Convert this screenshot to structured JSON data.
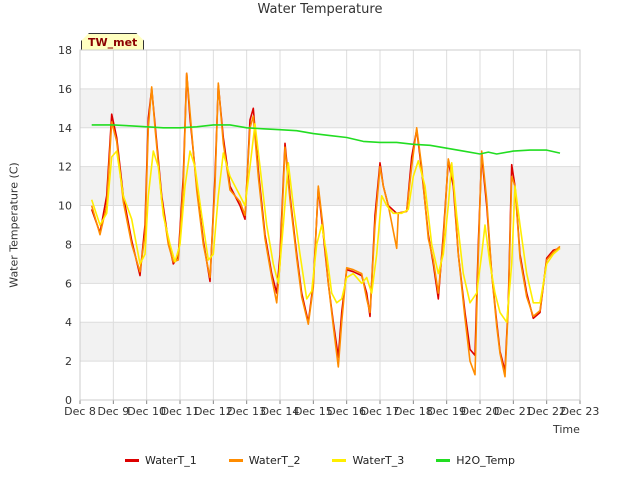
{
  "chart_data": {
    "type": "line",
    "title": "Water Temperature",
    "xlabel": "Time",
    "ylabel": "Water Temperature (C)",
    "ylim": [
      0,
      18
    ],
    "xlim": [
      8,
      23
    ],
    "yticks": [
      0,
      2,
      4,
      6,
      8,
      10,
      12,
      14,
      16,
      18
    ],
    "xticks": [
      {
        "value": 8,
        "label": "Dec 8"
      },
      {
        "value": 9,
        "label": "Dec 9"
      },
      {
        "value": 10,
        "label": "Dec 10"
      },
      {
        "value": 11,
        "label": "Dec 11"
      },
      {
        "value": 12,
        "label": "Dec 12"
      },
      {
        "value": 13,
        "label": "Dec 13"
      },
      {
        "value": 14,
        "label": "Dec 14"
      },
      {
        "value": 15,
        "label": "Dec 15"
      },
      {
        "value": 16,
        "label": "Dec 16"
      },
      {
        "value": 17,
        "label": "Dec 17"
      },
      {
        "value": 18,
        "label": "Dec 18"
      },
      {
        "value": 19,
        "label": "Dec 19"
      },
      {
        "value": 20,
        "label": "Dec 20"
      },
      {
        "value": 21,
        "label": "Dec 21"
      },
      {
        "value": 22,
        "label": "Dec 22"
      },
      {
        "value": 23,
        "label": "Dec 23"
      }
    ],
    "grid": true,
    "legend_position": "bottom",
    "annotation": "TW_met",
    "series": [
      {
        "name": "WaterT_1",
        "color": "#dd0000",
        "points": [
          [
            8.35,
            9.8
          ],
          [
            8.6,
            8.6
          ],
          [
            8.8,
            10.5
          ],
          [
            8.95,
            14.7
          ],
          [
            9.1,
            13.5
          ],
          [
            9.3,
            10.5
          ],
          [
            9.55,
            8.2
          ],
          [
            9.8,
            6.4
          ],
          [
            9.95,
            9.0
          ],
          [
            10.05,
            14.5
          ],
          [
            10.15,
            16.0
          ],
          [
            10.25,
            14.2
          ],
          [
            10.45,
            10.5
          ],
          [
            10.65,
            8.2
          ],
          [
            10.8,
            7.0
          ],
          [
            10.95,
            7.4
          ],
          [
            11.1,
            11.5
          ],
          [
            11.2,
            16.8
          ],
          [
            11.3,
            14.5
          ],
          [
            11.5,
            11.0
          ],
          [
            11.7,
            8.2
          ],
          [
            11.9,
            6.1
          ],
          [
            12.05,
            11.5
          ],
          [
            12.15,
            16.2
          ],
          [
            12.3,
            13.5
          ],
          [
            12.5,
            11.0
          ],
          [
            12.8,
            10.0
          ],
          [
            12.95,
            9.3
          ],
          [
            13.1,
            14.4
          ],
          [
            13.2,
            15.0
          ],
          [
            13.35,
            11.8
          ],
          [
            13.55,
            8.5
          ],
          [
            13.75,
            6.5
          ],
          [
            13.9,
            5.5
          ],
          [
            14.0,
            7.5
          ],
          [
            14.15,
            13.2
          ],
          [
            14.3,
            10.5
          ],
          [
            14.5,
            7.5
          ],
          [
            14.65,
            5.5
          ],
          [
            14.85,
            4.0
          ],
          [
            15.0,
            6.0
          ],
          [
            15.15,
            10.9
          ],
          [
            15.3,
            8.5
          ],
          [
            15.45,
            6.0
          ],
          [
            15.6,
            4.0
          ],
          [
            15.75,
            2.2
          ],
          [
            15.85,
            4.5
          ],
          [
            16.0,
            6.7
          ],
          [
            16.2,
            6.6
          ],
          [
            16.45,
            6.4
          ],
          [
            16.6,
            5.5
          ],
          [
            16.7,
            4.3
          ],
          [
            16.85,
            9.5
          ],
          [
            17.0,
            12.2
          ],
          [
            17.1,
            11.0
          ],
          [
            17.25,
            10.0
          ],
          [
            17.5,
            9.6
          ],
          [
            17.8,
            9.7
          ],
          [
            17.95,
            12.5
          ],
          [
            18.1,
            13.9
          ],
          [
            18.25,
            11.8
          ],
          [
            18.45,
            8.5
          ],
          [
            18.6,
            7.0
          ],
          [
            18.75,
            5.2
          ],
          [
            18.9,
            8.5
          ],
          [
            19.05,
            12.3
          ],
          [
            19.2,
            11.0
          ],
          [
            19.35,
            7.5
          ],
          [
            19.55,
            4.5
          ],
          [
            19.7,
            2.6
          ],
          [
            19.85,
            2.3
          ],
          [
            19.95,
            8.0
          ],
          [
            20.05,
            12.6
          ],
          [
            20.2,
            10.0
          ],
          [
            20.35,
            6.5
          ],
          [
            20.5,
            4.0
          ],
          [
            20.6,
            2.5
          ],
          [
            20.75,
            1.5
          ],
          [
            20.85,
            5.0
          ],
          [
            20.95,
            12.1
          ],
          [
            21.05,
            11.0
          ],
          [
            21.2,
            7.5
          ],
          [
            21.4,
            5.5
          ],
          [
            21.6,
            4.2
          ],
          [
            21.8,
            4.5
          ],
          [
            22.0,
            7.3
          ],
          [
            22.2,
            7.7
          ],
          [
            22.4,
            7.8
          ]
        ]
      },
      {
        "name": "WaterT_2",
        "color": "#ff8c00",
        "points": [
          [
            8.35,
            10.0
          ],
          [
            8.6,
            8.5
          ],
          [
            8.8,
            10.0
          ],
          [
            8.95,
            14.3
          ],
          [
            9.1,
            13.3
          ],
          [
            9.3,
            10.2
          ],
          [
            9.55,
            8.0
          ],
          [
            9.8,
            6.6
          ],
          [
            9.95,
            8.5
          ],
          [
            10.05,
            14.0
          ],
          [
            10.15,
            16.1
          ],
          [
            10.25,
            14.0
          ],
          [
            10.45,
            10.3
          ],
          [
            10.65,
            8.0
          ],
          [
            10.8,
            7.1
          ],
          [
            10.95,
            7.2
          ],
          [
            11.1,
            11.0
          ],
          [
            11.2,
            16.8
          ],
          [
            11.3,
            14.8
          ],
          [
            11.5,
            10.8
          ],
          [
            11.7,
            8.0
          ],
          [
            11.9,
            6.3
          ],
          [
            12.05,
            11.0
          ],
          [
            12.15,
            16.3
          ],
          [
            12.3,
            13.2
          ],
          [
            12.5,
            10.8
          ],
          [
            12.8,
            10.2
          ],
          [
            12.95,
            9.5
          ],
          [
            13.1,
            14.0
          ],
          [
            13.2,
            14.6
          ],
          [
            13.35,
            11.5
          ],
          [
            13.55,
            8.3
          ],
          [
            13.75,
            6.3
          ],
          [
            13.9,
            5.0
          ],
          [
            14.0,
            7.0
          ],
          [
            14.15,
            13.0
          ],
          [
            14.3,
            10.3
          ],
          [
            14.5,
            7.3
          ],
          [
            14.65,
            5.3
          ],
          [
            14.85,
            3.9
          ],
          [
            15.0,
            5.8
          ],
          [
            15.15,
            11.0
          ],
          [
            15.3,
            8.8
          ],
          [
            15.45,
            6.0
          ],
          [
            15.6,
            3.8
          ],
          [
            15.75,
            1.7
          ],
          [
            15.85,
            4.0
          ],
          [
            16.0,
            6.8
          ],
          [
            16.2,
            6.7
          ],
          [
            16.45,
            6.5
          ],
          [
            16.6,
            5.2
          ],
          [
            16.7,
            4.5
          ],
          [
            16.85,
            9.0
          ],
          [
            17.0,
            12.0
          ],
          [
            17.1,
            11.0
          ],
          [
            17.25,
            10.0
          ],
          [
            17.5,
            7.8
          ],
          [
            17.55,
            9.6
          ],
          [
            17.8,
            9.7
          ],
          [
            17.95,
            12.0
          ],
          [
            18.1,
            14.0
          ],
          [
            18.25,
            12.0
          ],
          [
            18.45,
            8.3
          ],
          [
            18.6,
            7.2
          ],
          [
            18.75,
            5.5
          ],
          [
            18.9,
            8.2
          ],
          [
            19.05,
            12.4
          ],
          [
            19.2,
            11.3
          ],
          [
            19.35,
            7.5
          ],
          [
            19.55,
            4.2
          ],
          [
            19.7,
            2.0
          ],
          [
            19.85,
            1.3
          ],
          [
            19.95,
            7.5
          ],
          [
            20.05,
            12.8
          ],
          [
            20.2,
            10.3
          ],
          [
            20.35,
            6.5
          ],
          [
            20.5,
            3.8
          ],
          [
            20.6,
            2.4
          ],
          [
            20.75,
            1.2
          ],
          [
            20.85,
            4.8
          ],
          [
            20.95,
            11.5
          ],
          [
            21.05,
            11.0
          ],
          [
            21.2,
            7.3
          ],
          [
            21.4,
            5.3
          ],
          [
            21.6,
            4.3
          ],
          [
            21.8,
            4.6
          ],
          [
            22.0,
            7.2
          ],
          [
            22.2,
            7.6
          ],
          [
            22.4,
            7.9
          ]
        ]
      },
      {
        "name": "WaterT_3",
        "color": "#ffee00",
        "points": [
          [
            8.35,
            10.3
          ],
          [
            8.6,
            9.0
          ],
          [
            8.8,
            9.6
          ],
          [
            8.95,
            12.5
          ],
          [
            9.1,
            12.8
          ],
          [
            9.3,
            10.5
          ],
          [
            9.55,
            9.3
          ],
          [
            9.8,
            7.0
          ],
          [
            9.95,
            7.5
          ],
          [
            10.05,
            10.5
          ],
          [
            10.2,
            12.8
          ],
          [
            10.35,
            12.0
          ],
          [
            10.5,
            9.5
          ],
          [
            10.7,
            8.0
          ],
          [
            10.85,
            7.1
          ],
          [
            11.0,
            8.0
          ],
          [
            11.15,
            11.0
          ],
          [
            11.3,
            12.8
          ],
          [
            11.45,
            12.0
          ],
          [
            11.65,
            9.5
          ],
          [
            11.85,
            7.2
          ],
          [
            12.0,
            7.5
          ],
          [
            12.15,
            10.5
          ],
          [
            12.3,
            12.7
          ],
          [
            12.5,
            11.5
          ],
          [
            12.8,
            10.5
          ],
          [
            12.95,
            10.0
          ],
          [
            13.1,
            12.0
          ],
          [
            13.25,
            14.2
          ],
          [
            13.4,
            12.0
          ],
          [
            13.6,
            9.0
          ],
          [
            13.8,
            7.0
          ],
          [
            13.95,
            6.0
          ],
          [
            14.1,
            9.0
          ],
          [
            14.25,
            12.2
          ],
          [
            14.4,
            10.0
          ],
          [
            14.6,
            7.5
          ],
          [
            14.8,
            5.2
          ],
          [
            14.95,
            5.6
          ],
          [
            15.1,
            8.0
          ],
          [
            15.25,
            9.0
          ],
          [
            15.4,
            7.5
          ],
          [
            15.55,
            5.5
          ],
          [
            15.7,
            5.0
          ],
          [
            15.85,
            5.2
          ],
          [
            16.0,
            6.3
          ],
          [
            16.2,
            6.5
          ],
          [
            16.45,
            6.0
          ],
          [
            16.6,
            6.3
          ],
          [
            16.75,
            5.5
          ],
          [
            16.9,
            7.5
          ],
          [
            17.05,
            10.5
          ],
          [
            17.2,
            10.0
          ],
          [
            17.4,
            9.6
          ],
          [
            17.65,
            9.6
          ],
          [
            17.85,
            9.8
          ],
          [
            18.0,
            11.5
          ],
          [
            18.15,
            12.3
          ],
          [
            18.35,
            11.0
          ],
          [
            18.55,
            8.0
          ],
          [
            18.75,
            6.5
          ],
          [
            18.9,
            7.5
          ],
          [
            19.05,
            10.0
          ],
          [
            19.15,
            12.2
          ],
          [
            19.3,
            9.5
          ],
          [
            19.5,
            6.5
          ],
          [
            19.7,
            5.0
          ],
          [
            19.9,
            5.5
          ],
          [
            20.05,
            7.5
          ],
          [
            20.15,
            9.0
          ],
          [
            20.3,
            7.0
          ],
          [
            20.45,
            5.5
          ],
          [
            20.6,
            4.5
          ],
          [
            20.8,
            4.0
          ],
          [
            20.95,
            7.0
          ],
          [
            21.05,
            11.0
          ],
          [
            21.2,
            9.0
          ],
          [
            21.4,
            6.5
          ],
          [
            21.6,
            5.0
          ],
          [
            21.8,
            5.0
          ],
          [
            22.0,
            7.0
          ],
          [
            22.2,
            7.5
          ],
          [
            22.4,
            7.8
          ]
        ]
      },
      {
        "name": "H2O_Temp",
        "color": "#22dd22",
        "points": [
          [
            8.35,
            14.15
          ],
          [
            9.0,
            14.15
          ],
          [
            9.5,
            14.1
          ],
          [
            10.0,
            14.05
          ],
          [
            10.5,
            14.0
          ],
          [
            11.0,
            14.0
          ],
          [
            11.5,
            14.05
          ],
          [
            12.0,
            14.15
          ],
          [
            12.5,
            14.15
          ],
          [
            13.0,
            14.0
          ],
          [
            13.5,
            13.95
          ],
          [
            14.0,
            13.9
          ],
          [
            14.5,
            13.85
          ],
          [
            15.0,
            13.7
          ],
          [
            15.5,
            13.6
          ],
          [
            16.0,
            13.5
          ],
          [
            16.5,
            13.3
          ],
          [
            17.0,
            13.25
          ],
          [
            17.5,
            13.25
          ],
          [
            18.0,
            13.15
          ],
          [
            18.5,
            13.1
          ],
          [
            19.0,
            12.95
          ],
          [
            19.5,
            12.8
          ],
          [
            20.0,
            12.65
          ],
          [
            20.25,
            12.75
          ],
          [
            20.5,
            12.65
          ],
          [
            21.0,
            12.8
          ],
          [
            21.5,
            12.85
          ],
          [
            22.0,
            12.85
          ],
          [
            22.4,
            12.7
          ]
        ]
      }
    ]
  }
}
